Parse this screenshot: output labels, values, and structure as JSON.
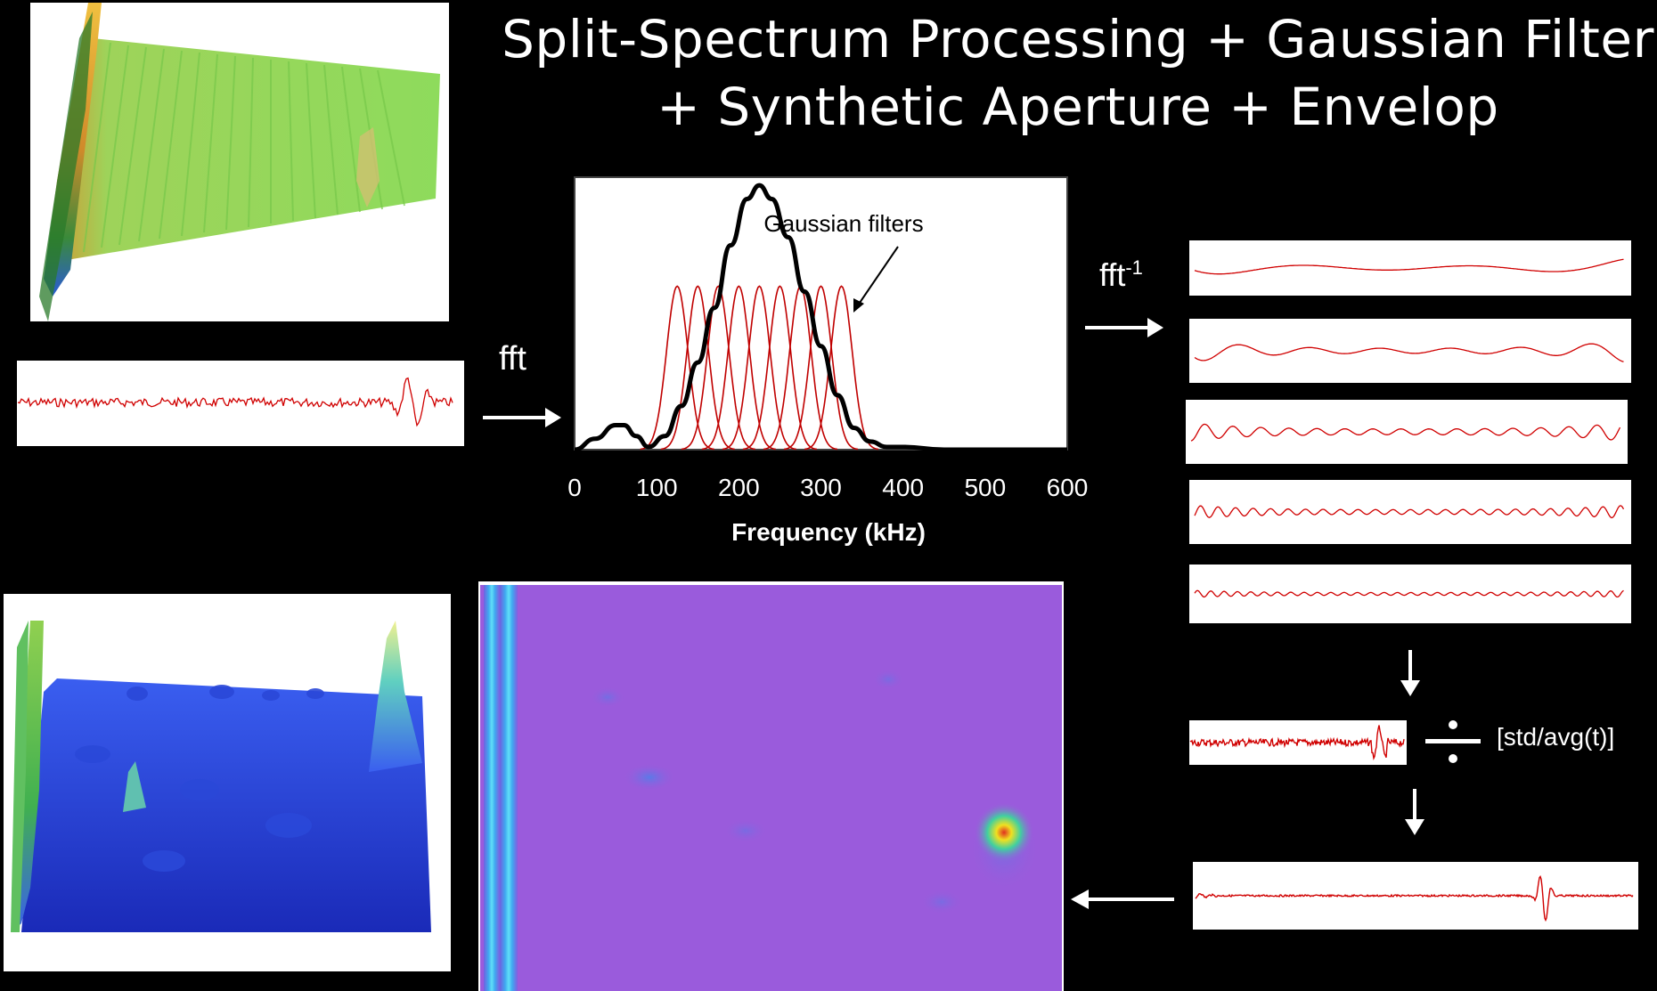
{
  "title": {
    "line1": "Split-Spectrum Processing + Gaussian Filter",
    "line2": "+ Synthetic Aperture + Envelop"
  },
  "labels": {
    "fft": "fft",
    "ifft_base": "fft",
    "ifft_exp": "-1",
    "normalize": "[std/avg(t)]",
    "gaussian_filters": "Gaussian filters"
  },
  "chart_data": {
    "type": "line",
    "xlabel": "Frequency (kHz)",
    "ylabel": "",
    "xlim": [
      0,
      600
    ],
    "xticks": [
      0,
      100,
      200,
      300,
      400,
      500,
      600
    ],
    "ylim": [
      0,
      1
    ],
    "grid": false,
    "annotations": [
      "Gaussian filters"
    ],
    "series": [
      {
        "color": "#000000",
        "x": [
          0,
          25,
          50,
          60,
          75,
          90,
          110,
          130,
          150,
          170,
          190,
          210,
          225,
          240,
          260,
          280,
          300,
          320,
          340,
          360,
          380,
          400,
          450,
          500,
          550,
          600
        ],
        "y": [
          0.0,
          0.04,
          0.09,
          0.09,
          0.05,
          0.01,
          0.05,
          0.16,
          0.32,
          0.52,
          0.75,
          0.92,
          0.97,
          0.92,
          0.78,
          0.58,
          0.38,
          0.2,
          0.08,
          0.03,
          0.01,
          0.01,
          0.0,
          0.0,
          0.0,
          0.0
        ]
      }
    ],
    "filters": {
      "color": "#c00000",
      "centers": [
        125,
        150,
        175,
        200,
        225,
        250,
        275,
        300,
        325
      ],
      "peak": 0.6
    }
  },
  "colors": {
    "background": "#000000",
    "signal": "#d00000",
    "surface_green": "#8fd65a",
    "surface_blue": "#2a3fd8",
    "heatmap_bg": "#9a5bdc"
  }
}
